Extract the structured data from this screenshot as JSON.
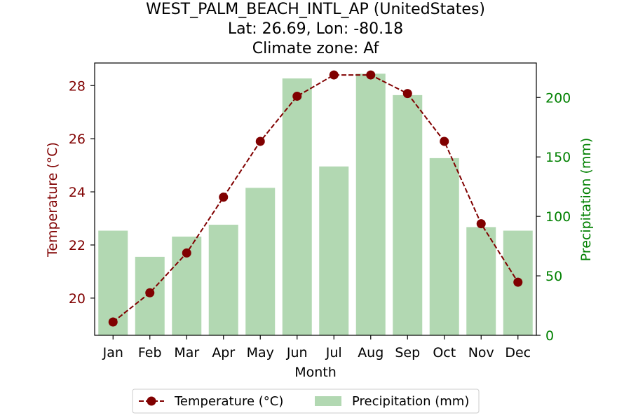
{
  "chart_data": {
    "type": "bar+line",
    "title_lines": [
      "WEST_PALM_BEACH_INTL_AP (UnitedStates)",
      "Lat: 26.69, Lon: -80.18",
      "Climate zone: Af"
    ],
    "xlabel": "Month",
    "ylabel_left": "Temperature (°C)",
    "ylabel_right": "Precipitation (mm)",
    "categories": [
      "Jan",
      "Feb",
      "Mar",
      "Apr",
      "May",
      "Jun",
      "Jul",
      "Aug",
      "Sep",
      "Oct",
      "Nov",
      "Dec"
    ],
    "series": [
      {
        "name": "Temperature (°C)",
        "type": "line",
        "axis": "left",
        "color": "#800000",
        "values": [
          19.1,
          20.2,
          21.7,
          23.8,
          25.9,
          27.6,
          28.4,
          28.4,
          27.7,
          25.9,
          22.8,
          20.6
        ]
      },
      {
        "name": "Precipitation (mm)",
        "type": "bar",
        "axis": "right",
        "color": "#b2d8b2",
        "values": [
          88,
          66,
          83,
          93,
          124,
          216,
          142,
          220,
          202,
          149,
          91,
          88
        ]
      }
    ],
    "ylim_left": [
      18.6,
      28.85
    ],
    "yticks_left": [
      20,
      22,
      24,
      26,
      28
    ],
    "ylim_right": [
      0,
      229
    ],
    "yticks_right": [
      0,
      50,
      100,
      150,
      200
    ],
    "left_axis_color": "#800000",
    "right_axis_color": "#008000",
    "legend_position": "bottom-center"
  }
}
